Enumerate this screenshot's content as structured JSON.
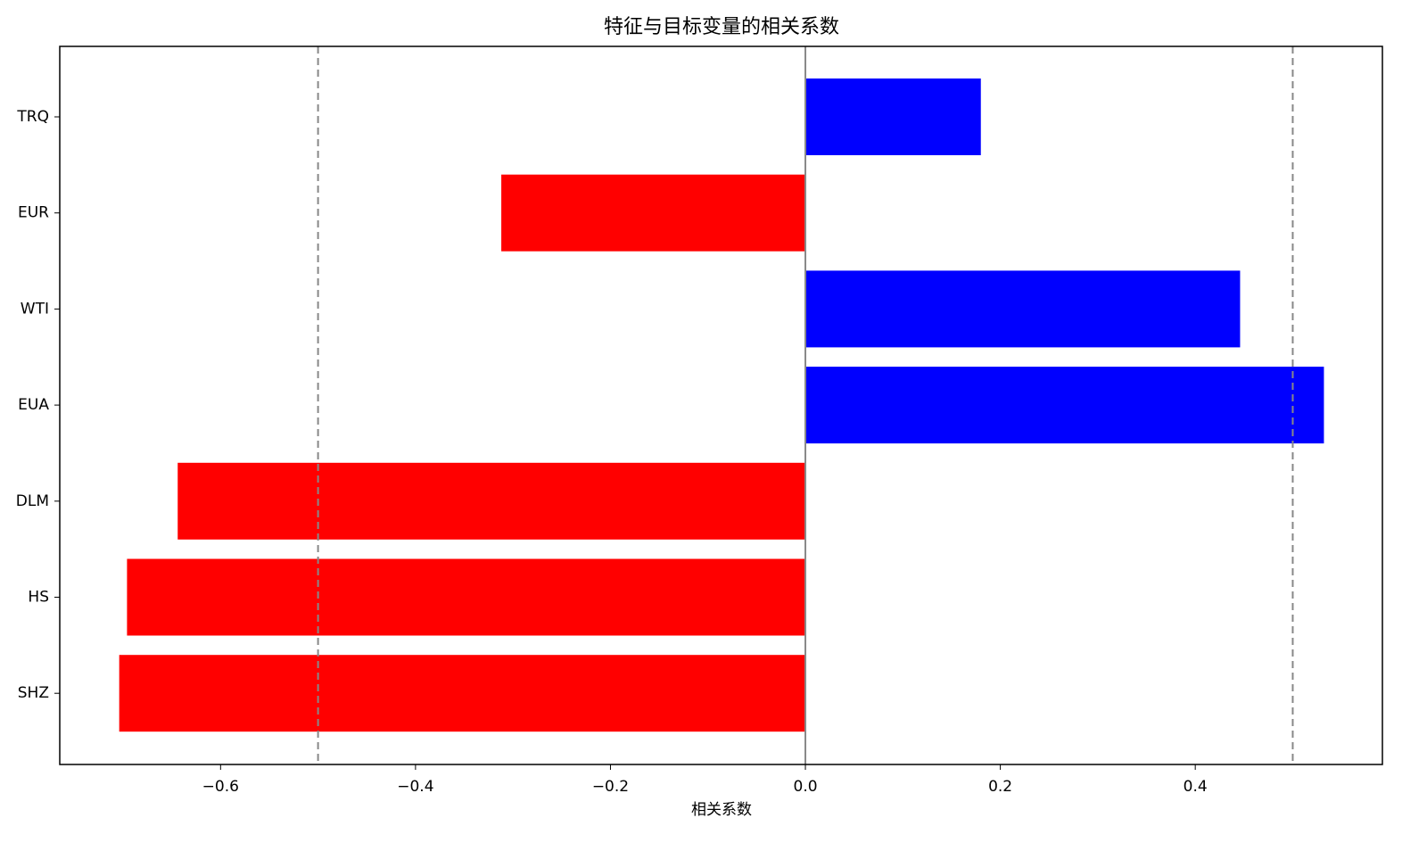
{
  "chart_data": {
    "type": "barh",
    "title": "特征与目标变量的相关系数",
    "x_label": "相关系数",
    "categories": [
      "TRQ",
      "EUR",
      "WTI",
      "EUA",
      "DLM",
      "HS",
      "SHZ"
    ],
    "values": [
      0.18,
      -0.312,
      0.446,
      0.532,
      -0.644,
      -0.696,
      -0.704
    ],
    "positive_color": "#0000ff",
    "negative_color": "#ff0000",
    "xlim": [
      -0.765,
      0.592
    ],
    "xticks": [
      {
        "value": -0.6,
        "label": "−0.6"
      },
      {
        "value": -0.4,
        "label": "−0.4"
      },
      {
        "value": -0.2,
        "label": "−0.2"
      },
      {
        "value": 0,
        "label": "0.0"
      },
      0.2,
      0.4
    ],
    "vlines": [
      {
        "value": -0.5,
        "dashed": true
      },
      {
        "value": 0,
        "dashed": false
      },
      {
        "value": 0.5,
        "dashed": true
      }
    ],
    "grid": false
  }
}
